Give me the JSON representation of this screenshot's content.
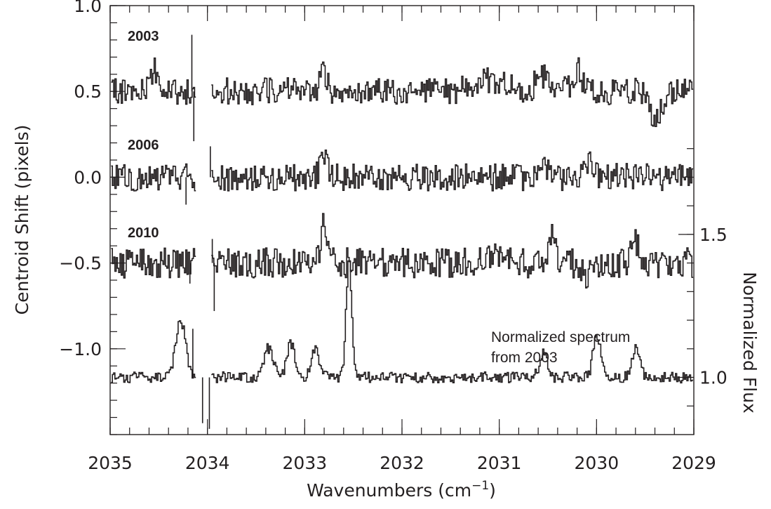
{
  "chart_data": {
    "type": "line",
    "xlabel": "Wavenumbers (cm",
    "xlabel_sup": "−1",
    "xlabel_close": ")",
    "ylabel_left": "Centroid Shift (pixels)",
    "ylabel_right": "Normalized Flux",
    "xlim": [
      2035,
      2029
    ],
    "ylim_left": [
      -1.5,
      1.0
    ],
    "ylim_right": [
      0.8,
      2.3
    ],
    "x_ticks": [
      "2035",
      "2034",
      "2033",
      "2032",
      "2031",
      "2030",
      "2029"
    ],
    "y_ticks_left": [
      "1.0",
      "0.5",
      "0.0",
      "−0.5",
      "−1.0"
    ],
    "y_ticks_left_values": [
      1.0,
      0.5,
      0.0,
      -0.5,
      -1.0
    ],
    "y_ticks_right": [
      "1.5",
      "1.0"
    ],
    "y_ticks_right_values": [
      1.5,
      1.0
    ],
    "grid": false,
    "gap": [
      2034.12,
      2033.96
    ],
    "annotation": [
      "Normalized spectrum",
      "from 2003"
    ],
    "series": [
      {
        "label": "2003",
        "axis": "left",
        "baseline": 0.5,
        "noise": 0.05,
        "features": [
          [
            2034.55,
            0.12,
            0.04
          ],
          [
            2032.82,
            0.15,
            0.03
          ],
          [
            2031.1,
            0.06,
            0.15
          ],
          [
            2030.55,
            0.08,
            0.08
          ],
          [
            2030.2,
            0.12,
            0.05
          ],
          [
            2029.4,
            -0.14,
            0.06
          ]
        ],
        "points": [
          [
            2034.16,
            0.83
          ],
          [
            2034.14,
            0.21
          ]
        ]
      },
      {
        "label": "2006",
        "axis": "left",
        "baseline": 0.0,
        "noise": 0.05,
        "features": [
          [
            2032.81,
            0.15,
            0.03
          ],
          [
            2030.55,
            0.08,
            0.04
          ],
          [
            2030.1,
            0.1,
            0.05
          ]
        ],
        "points": [
          [
            2034.22,
            -0.16
          ],
          [
            2033.97,
            0.18
          ]
        ]
      },
      {
        "label": "2010",
        "axis": "left",
        "baseline": -0.5,
        "noise": 0.055,
        "features": [
          [
            2032.81,
            0.22,
            0.03
          ],
          [
            2031.0,
            0.05,
            0.1
          ],
          [
            2030.45,
            0.15,
            0.03
          ],
          [
            2030.1,
            -0.08,
            0.04
          ],
          [
            2029.6,
            0.12,
            0.04
          ]
        ],
        "points": [
          [
            2034.18,
            -0.62
          ],
          [
            2033.93,
            -0.78
          ],
          [
            2033.95,
            -0.36
          ]
        ]
      },
      {
        "label": "Normalized spectrum from 2003",
        "axis": "right",
        "baseline": 1.0,
        "noise": 0.012,
        "features": [
          [
            2034.28,
            0.2,
            0.05
          ],
          [
            2033.38,
            0.1,
            0.05
          ],
          [
            2033.15,
            0.12,
            0.04
          ],
          [
            2032.9,
            0.1,
            0.04
          ],
          [
            2032.55,
            0.4,
            0.03
          ],
          [
            2030.55,
            0.09,
            0.04
          ],
          [
            2030.0,
            0.15,
            0.04
          ],
          [
            2029.6,
            0.1,
            0.04
          ]
        ],
        "points": [
          [
            2034.05,
            0.84
          ],
          [
            2033.98,
            0.82
          ],
          [
            2034.15,
            1.17
          ]
        ]
      }
    ]
  }
}
